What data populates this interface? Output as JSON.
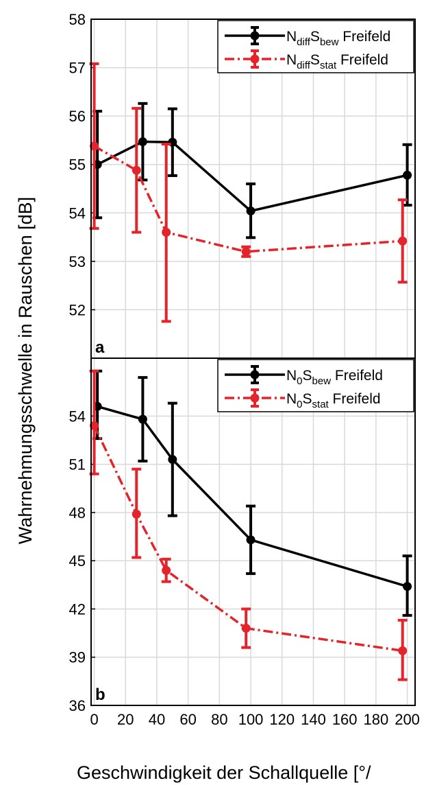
{
  "colors": {
    "black_series": "#000000",
    "red_series": "#e3242b",
    "grid": "#d9d9d9"
  },
  "axes": {
    "ylabel": "Wahrnehmungsschwelle in Rauschen [dB]",
    "xlabel": "Geschwindigkeit der Schallquelle [°/",
    "x_ticks": [
      "0",
      "20",
      "40",
      "60",
      "80",
      "100",
      "120",
      "140",
      "160",
      "180",
      "200"
    ]
  },
  "chart_data": [
    {
      "type": "line",
      "panel_label": "a",
      "xlim": [
        -2,
        205
      ],
      "ylim": [
        51,
        58
      ],
      "y_ticks": [
        "52",
        "53",
        "54",
        "55",
        "56",
        "57",
        "58"
      ],
      "grid": true,
      "legend_position": "top-right",
      "series": [
        {
          "name": {
            "main": "N",
            "sub1": "diff",
            "mid": "S",
            "sub2": "bew",
            "tail": " Freifeld"
          },
          "color": "#000000",
          "linestyle": "solid",
          "x": [
            2,
            31,
            50,
            100,
            200
          ],
          "y": [
            55.0,
            55.47,
            55.46,
            54.04,
            54.78
          ],
          "err_low": [
            53.9,
            54.68,
            54.77,
            53.49,
            54.16
          ],
          "err_high": [
            56.1,
            56.26,
            56.15,
            54.6,
            55.41
          ]
        },
        {
          "name": {
            "main": "N",
            "sub1": "diff",
            "mid": "S",
            "sub2": "stat",
            "tail": " Freifeld"
          },
          "color": "#e3242b",
          "linestyle": "dashdot",
          "x": [
            0,
            27,
            46,
            97,
            197
          ],
          "y": [
            55.38,
            54.88,
            53.6,
            53.2,
            53.42
          ],
          "err_low": [
            53.68,
            53.6,
            51.76,
            53.1,
            52.57
          ],
          "err_high": [
            57.08,
            56.16,
            55.42,
            53.3,
            54.27
          ]
        }
      ]
    },
    {
      "type": "line",
      "panel_label": "b",
      "xlim": [
        -2,
        205
      ],
      "ylim": [
        36,
        57.6
      ],
      "y_ticks": [
        "36",
        "39",
        "42",
        "45",
        "48",
        "51",
        "54"
      ],
      "grid": true,
      "legend_position": "top-right",
      "series": [
        {
          "name": {
            "main": "N",
            "sub1": "0",
            "mid": "S",
            "sub2": "bew",
            "tail": " Freifeld"
          },
          "color": "#000000",
          "linestyle": "solid",
          "x": [
            2,
            31,
            50,
            100,
            200
          ],
          "y": [
            54.6,
            53.8,
            51.3,
            46.3,
            43.4
          ],
          "err_low": [
            52.6,
            51.2,
            47.8,
            44.2,
            41.6
          ],
          "err_high": [
            56.8,
            56.4,
            54.8,
            48.4,
            45.3
          ]
        },
        {
          "name": {
            "main": "N",
            "sub1": "0",
            "mid": "S",
            "sub2": "stat",
            "tail": " Freifeld"
          },
          "color": "#e3242b",
          "linestyle": "dashdot",
          "x": [
            0,
            27,
            46,
            97,
            197
          ],
          "y": [
            53.4,
            47.9,
            44.4,
            40.8,
            39.4
          ],
          "err_low": [
            50.4,
            45.2,
            43.7,
            39.6,
            37.6
          ],
          "err_high": [
            56.8,
            50.7,
            45.1,
            42.0,
            41.3
          ]
        }
      ]
    }
  ]
}
